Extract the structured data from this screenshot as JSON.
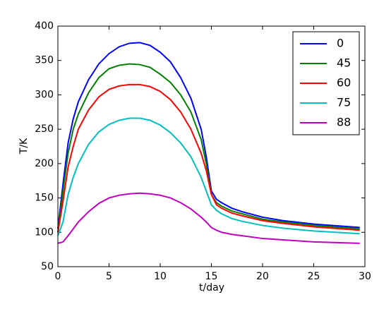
{
  "chart_data": {
    "type": "line",
    "xlabel": "t/day",
    "ylabel": "T/K",
    "x": [
      0,
      0.5,
      1,
      1.5,
      2,
      3,
      4,
      5,
      6,
      7,
      8,
      9,
      10,
      11,
      12,
      13,
      14,
      14.5,
      15,
      15.5,
      16,
      17,
      18,
      20,
      22,
      25,
      29.5
    ],
    "series": [
      {
        "name": "0",
        "color": "#0000ff",
        "values": [
          105,
          170,
          230,
          265,
          290,
          322,
          345,
          360,
          370,
          375,
          376,
          372,
          362,
          348,
          325,
          295,
          250,
          210,
          160,
          148,
          143,
          135,
          130,
          122,
          117,
          112,
          107
        ]
      },
      {
        "name": "45",
        "color": "#008000",
        "values": [
          100,
          160,
          215,
          250,
          272,
          303,
          325,
          338,
          343,
          345,
          344,
          340,
          330,
          318,
          300,
          275,
          235,
          200,
          155,
          143,
          138,
          131,
          127,
          119,
          115,
          110,
          105
        ]
      },
      {
        "name": "60",
        "color": "#ff0000",
        "values": [
          100,
          145,
          195,
          225,
          250,
          278,
          297,
          308,
          313,
          315,
          315,
          312,
          305,
          293,
          275,
          250,
          215,
          190,
          155,
          140,
          135,
          128,
          124,
          117,
          113,
          108,
          103
        ]
      },
      {
        "name": "75",
        "color": "#00bfbf",
        "values": [
          95,
          115,
          155,
          180,
          200,
          228,
          246,
          257,
          263,
          266,
          266,
          263,
          256,
          245,
          230,
          210,
          180,
          160,
          140,
          132,
          127,
          120,
          116,
          110,
          106,
          102,
          98
        ]
      },
      {
        "name": "88",
        "color": "#bf00bf",
        "values": [
          84,
          86,
          95,
          105,
          115,
          130,
          142,
          150,
          154,
          156,
          157,
          156,
          154,
          150,
          143,
          134,
          122,
          115,
          107,
          103,
          100,
          97,
          95,
          91,
          89,
          86,
          84
        ]
      }
    ],
    "xlim": [
      0,
      30
    ],
    "xticks": [
      0,
      5,
      10,
      15,
      20,
      25,
      30
    ],
    "ylim": [
      50,
      400
    ],
    "yticks": [
      50,
      100,
      150,
      200,
      250,
      300,
      350,
      400
    ],
    "grid": false,
    "legend": "upper right"
  }
}
